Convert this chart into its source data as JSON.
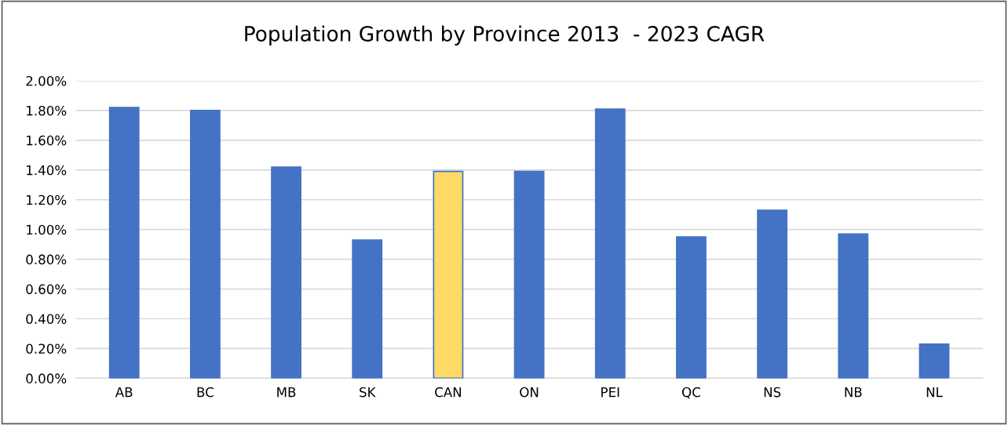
{
  "chart_data": {
    "type": "bar",
    "title": "Population Growth by Province 2013  - 2023 CAGR",
    "categories": [
      "AB",
      "BC",
      "MB",
      "SK",
      "CAN",
      "ON",
      "PEI",
      "QC",
      "NS",
      "NB",
      "NL"
    ],
    "values": [
      1.82,
      1.8,
      1.42,
      0.93,
      1.39,
      1.39,
      1.81,
      0.95,
      1.13,
      0.97,
      0.23
    ],
    "color": "#4472c4",
    "colors": [
      "#4472c4",
      "#4472c4",
      "#4472c4",
      "#4472c4",
      "#ffd966",
      "#4472c4",
      "#4472c4",
      "#4472c4",
      "#4472c4",
      "#4472c4",
      "#4472c4"
    ],
    "ylim": [
      0,
      2
    ],
    "yticks": [
      {
        "value": 0,
        "label": "0.00%"
      },
      {
        "value": 0.2,
        "label": "0.20%"
      },
      {
        "value": 0.4,
        "label": "0.40%"
      },
      {
        "value": 0.6,
        "label": "0.60%"
      },
      {
        "value": 0.8,
        "label": "0.80%"
      },
      {
        "value": 1.0,
        "label": "1.00%"
      },
      {
        "value": 1.2,
        "label": "1.20%"
      },
      {
        "value": 1.4,
        "label": "1.40%"
      },
      {
        "value": 1.6,
        "label": "1.60%"
      },
      {
        "value": 1.8,
        "label": "1.80%"
      },
      {
        "value": 2.0,
        "label": "2.00%"
      }
    ],
    "grid": "y",
    "legend": false
  }
}
